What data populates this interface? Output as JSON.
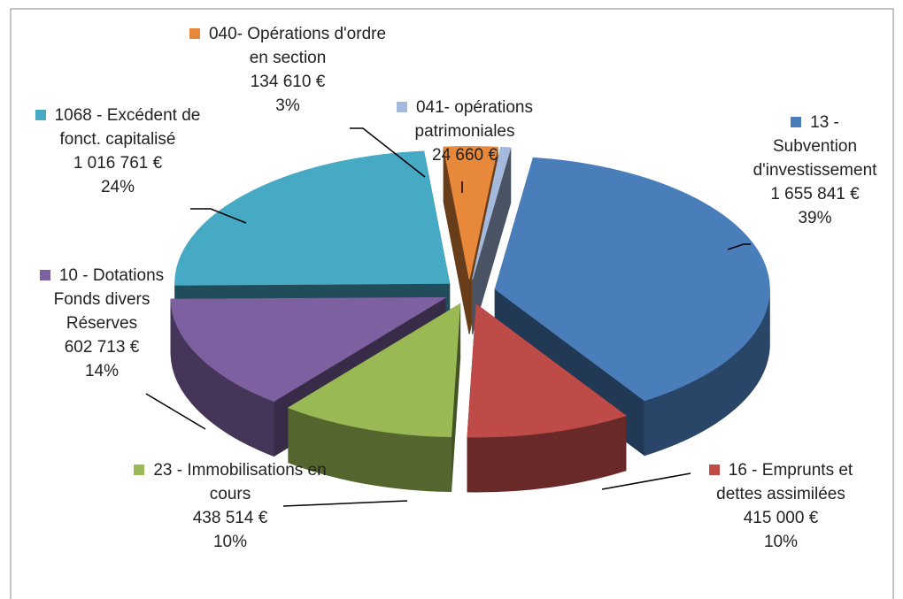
{
  "chart_data": {
    "type": "pie3d",
    "categories": [
      "13 - Subvention d'investissement",
      "16 - Emprunts et dettes assimilées",
      "23 - Immobilisations en cours",
      "10 - Dotations Fonds divers Réserves",
      "1068 - Excédent de fonct. capitalisé",
      "040- Opérations d'ordre en section",
      "041- opérations patrimoniales"
    ],
    "values": [
      1655841,
      415000,
      438514,
      602713,
      1016761,
      134610,
      24660
    ],
    "value_labels": [
      "1 655 841 €",
      "415 000 €",
      "438 514 €",
      "602 713 €",
      "1 016 761 €",
      "134 610 €",
      "24 660 €"
    ],
    "percents": [
      39,
      10,
      10,
      14,
      24,
      3,
      null
    ],
    "percent_labels": [
      "39%",
      "10%",
      "10%",
      "14%",
      "24%",
      "3%",
      null
    ],
    "colors": [
      "#4a7ebb",
      "#be4b48",
      "#98b954",
      "#7d60a0",
      "#46aac5",
      "#e8883a",
      "#a5b9dc"
    ]
  }
}
